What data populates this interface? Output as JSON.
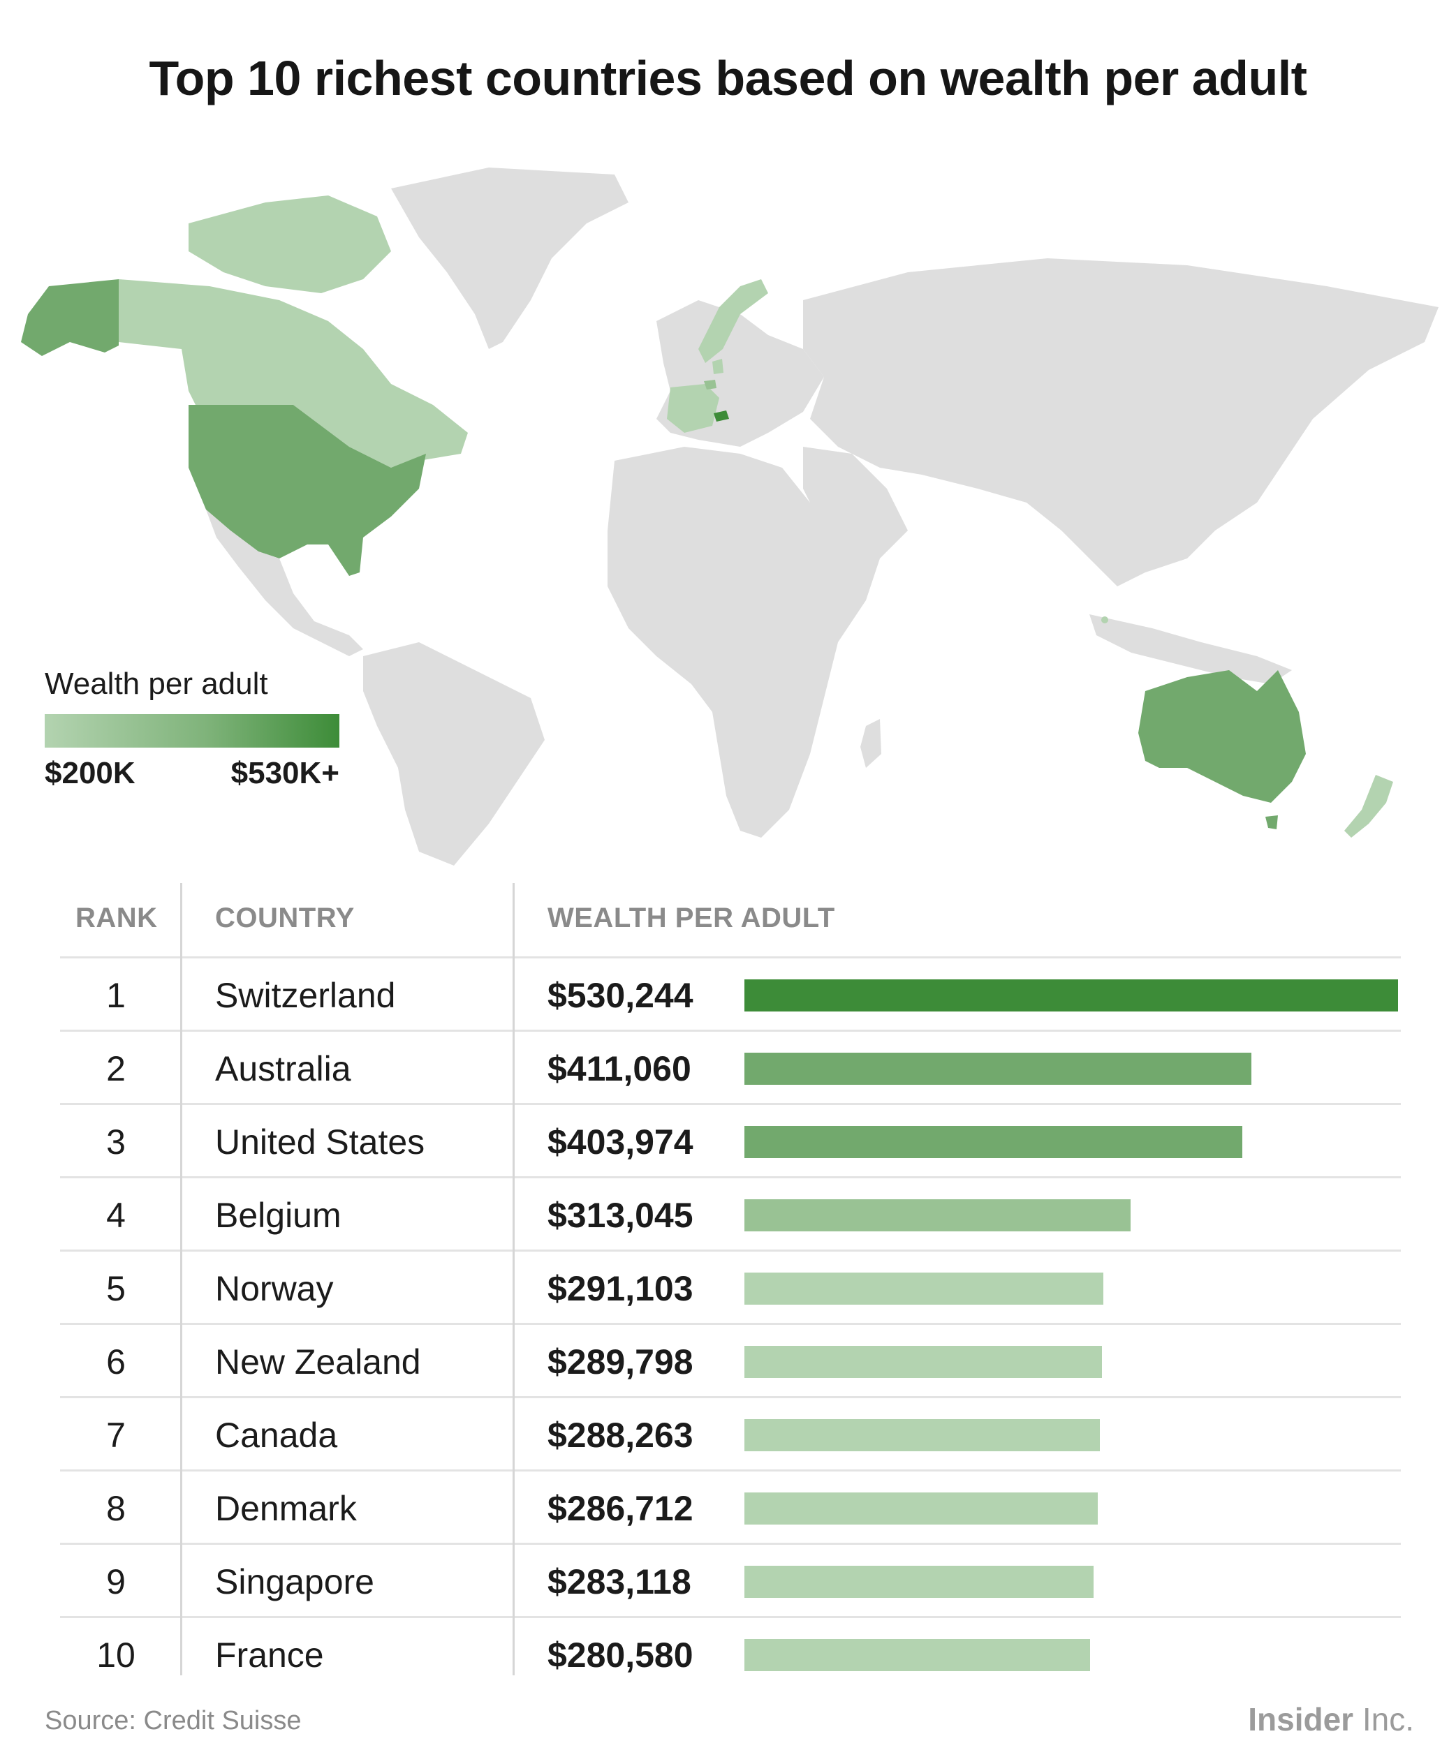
{
  "title": "Top 10 richest countries based on wealth per adult",
  "legend": {
    "title": "Wealth per adult",
    "min_label": "$200K",
    "max_label": "$530K+",
    "colors": [
      "#b3d3b0",
      "#3d8c38"
    ]
  },
  "table": {
    "headers": {
      "rank": "RANK",
      "country": "COUNTRY",
      "wealth": "WEALTH PER ADULT"
    }
  },
  "chart_data": {
    "type": "bar",
    "orientation": "horizontal",
    "categories": [
      "Switzerland",
      "Australia",
      "United States",
      "Belgium",
      "Norway",
      "New Zealand",
      "Canada",
      "Denmark",
      "Singapore",
      "France"
    ],
    "ranks": [
      "1",
      "2",
      "3",
      "4",
      "5",
      "6",
      "7",
      "8",
      "9",
      "10"
    ],
    "value_labels": [
      "$530,244",
      "$411,060",
      "$403,974",
      "$313,045",
      "$291,103",
      "$289,798",
      "$288,263",
      "$286,712",
      "$283,118",
      "$280,580"
    ],
    "values": [
      530244,
      411060,
      403974,
      313045,
      291103,
      289798,
      288263,
      286712,
      283118,
      280580
    ],
    "bar_colors": [
      "#3d8c38",
      "#72a96d",
      "#72a96d",
      "#99c294",
      "#b3d3b0",
      "#b3d3b0",
      "#b3d3b0",
      "#b3d3b0",
      "#b3d3b0",
      "#b3d3b0"
    ],
    "xlim": [
      0,
      530244
    ]
  },
  "map": {
    "base_color": "#dedede",
    "highlight": {
      "Switzerland": "#3d8c38",
      "Australia": "#72a96d",
      "United States": "#72a96d",
      "Belgium": "#99c294",
      "Norway": "#b3d3b0",
      "New Zealand": "#b3d3b0",
      "Canada": "#b3d3b0",
      "Denmark": "#b3d3b0",
      "Singapore": "#b3d3b0",
      "France": "#b3d3b0"
    }
  },
  "footer": {
    "source": "Source: Credit Suisse",
    "logo_bold": "Insider",
    "logo_light": " Inc."
  }
}
